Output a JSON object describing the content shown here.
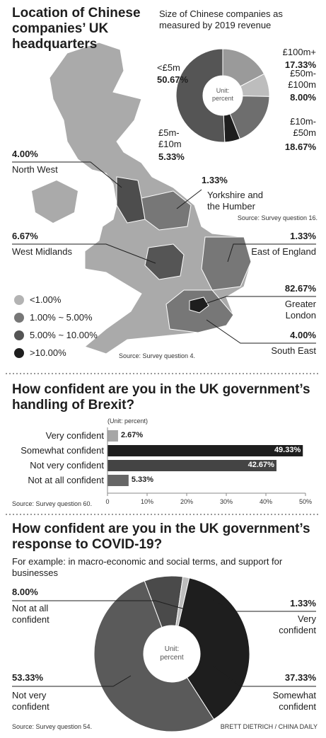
{
  "map": {
    "title": "Location of Chinese companies’ UK headquarters",
    "regions": [
      "North West",
      "Yorkshire and\nthe Humber",
      "West Midlands",
      "East of England",
      "Greater\nLondon",
      "South East"
    ],
    "values": [
      4.0,
      1.33,
      6.67,
      1.33,
      82.67,
      4.0
    ],
    "value_labels": [
      "4.00%",
      "1.33%",
      "6.67%",
      "1.33%",
      "82.67%",
      "4.00%"
    ],
    "colors": [
      "#4d4d4d",
      "#777777",
      "#555555",
      "#777777",
      "#1e1e1e",
      "#777777"
    ],
    "legend": {
      "labels": [
        "<1.00%",
        "1.00% ~ 5.00%",
        "5.00% ~ 10.00%",
        ">10.00%"
      ],
      "colors": [
        "#b3b3b3",
        "#777777",
        "#555555",
        "#1e1e1e"
      ]
    },
    "source": "Source: Survey question 4."
  },
  "chart_data": [
    {
      "type": "pie",
      "title": "Size of Chinese companies as measured by 2019 revenue",
      "categories": [
        "£100m+",
        "£50m-\n£100m",
        "£10m-\n£50m",
        "£5m-\n£10m",
        "<£5m"
      ],
      "values": [
        17.33,
        8.0,
        18.67,
        5.33,
        50.67
      ],
      "value_labels": [
        "17.33%",
        "8.00%",
        "18.67%",
        "5.33%",
        "50.67%"
      ],
      "colors": [
        "#9a9a9a",
        "#bdbdbd",
        "#6e6e6e",
        "#1e1e1e",
        "#555555"
      ],
      "center_label": "Unit:\npercent",
      "source": "Source: Survey question 16."
    },
    {
      "type": "bar",
      "title": "How confident are you in the UK government’s handling of Brexit?",
      "unit": "(Unit: percent)",
      "categories": [
        "Very confident",
        "Somewhat confident",
        "Not very confident",
        "Not at all confident"
      ],
      "values": [
        2.67,
        49.33,
        42.67,
        5.33
      ],
      "value_labels": [
        "2.67%",
        "49.33%",
        "42.67%",
        "5.33%"
      ],
      "colors": [
        "#a6a6a6",
        "#1e1e1e",
        "#444444",
        "#666666"
      ],
      "xlim": [
        0,
        50
      ],
      "xticks": [
        0,
        {
          "value": 10,
          "label": "10%"
        },
        {
          "value": 20,
          "label": "20%"
        },
        {
          "value": 30,
          "label": "30%"
        },
        {
          "value": 40,
          "label": "40%"
        },
        {
          "value": 50,
          "label": "50%"
        }
      ],
      "source": "Source: Survey question 60."
    },
    {
      "type": "pie",
      "title": "How confident are you in the UK government’s response to COVID-19?",
      "subtitle": "For example: in macro-economic and social terms, and support for businesses",
      "categories": [
        "Not at all\nconfident",
        "Very\nconfident",
        "Somewhat\nconfident",
        "Not very\nconfident"
      ],
      "values": [
        8.0,
        1.33,
        37.33,
        53.33
      ],
      "value_labels": [
        "8.00%",
        "1.33%",
        "37.33%",
        "53.33%"
      ],
      "colors": [
        "#4a4a4a",
        "#bdbdbd",
        "#1e1e1e",
        "#5a5a5a"
      ],
      "center_label": "Unit:\npercent",
      "source": "Source: Survey question 54.",
      "credit": "BRETT DIETRICH / CHINA DAILY"
    }
  ]
}
